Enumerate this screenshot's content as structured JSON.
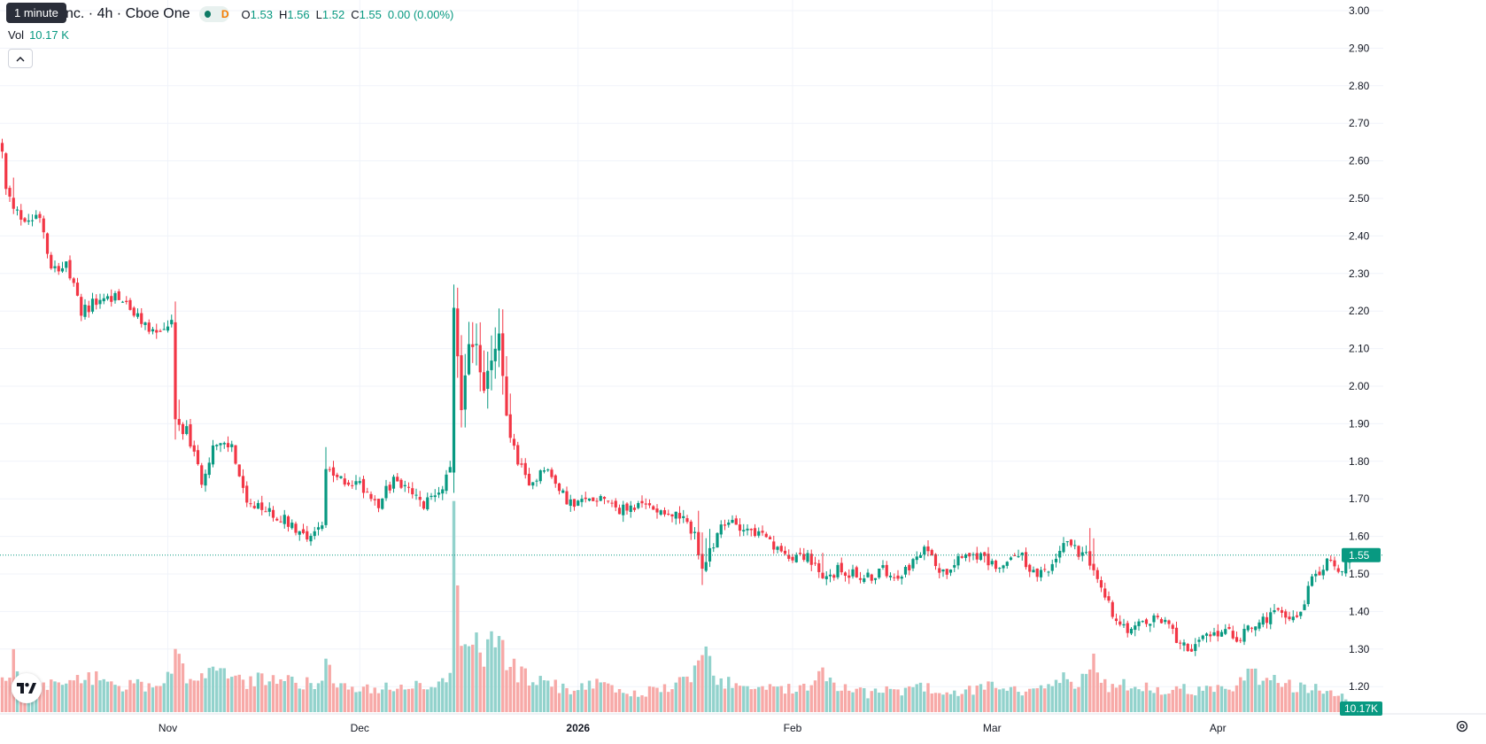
{
  "legend": {
    "title": "nc. · 4h · Cboe One",
    "interval_flag": "D",
    "tooltip": "1 minute",
    "open_label": "O",
    "open": "1.53",
    "high_label": "H",
    "high": "1.56",
    "low_label": "L",
    "low": "1.52",
    "close_label": "C",
    "close": "1.55",
    "change": "0.00 (0.00%)",
    "vol_label": "Vol",
    "vol_value": "10.17 K"
  },
  "colors": {
    "up": "#089981",
    "down": "#f23645",
    "up_vol": "#92d2cc",
    "down_vol": "#f7a9a7",
    "grid": "#f0f3fa",
    "last_price": "#089981"
  },
  "icons": {
    "collapse": "chevron-up-icon",
    "logo": "tradingview-logo-icon",
    "settings": "gear-icon"
  },
  "chart_data": {
    "type": "candlestick",
    "y_axis": {
      "ticks": [
        "3.00",
        "2.90",
        "2.80",
        "2.70",
        "2.60",
        "2.50",
        "2.40",
        "2.30",
        "2.20",
        "2.10",
        "2.00",
        "1.90",
        "1.80",
        "1.70",
        "1.60",
        "1.50",
        "1.40",
        "1.30",
        "1.20"
      ],
      "range": [
        1.165,
        3.015
      ]
    },
    "x_axis": {
      "ticks": [
        {
          "label": "Nov",
          "index": 44,
          "bold": false
        },
        {
          "label": "Dec",
          "index": 95,
          "bold": false
        },
        {
          "label": "2026",
          "index": 153,
          "bold": true
        },
        {
          "label": "Feb",
          "index": 210,
          "bold": false
        },
        {
          "label": "Mar",
          "index": 263,
          "bold": false
        },
        {
          "label": "Apr",
          "index": 323,
          "bold": false
        }
      ]
    },
    "last_price": {
      "value": 1.55,
      "label": "1.55"
    },
    "last_volume_label": "10.17K",
    "volume_max": 100,
    "anchors": [
      [
        0,
        2.62,
        18
      ],
      [
        1,
        2.52,
        16
      ],
      [
        3,
        2.47,
        30
      ],
      [
        6,
        2.44,
        14
      ],
      [
        10,
        2.46,
        18
      ],
      [
        13,
        2.32,
        16
      ],
      [
        17,
        2.32,
        15
      ],
      [
        21,
        2.2,
        18
      ],
      [
        26,
        2.23,
        22
      ],
      [
        31,
        2.24,
        14
      ],
      [
        36,
        2.18,
        16
      ],
      [
        41,
        2.14,
        14
      ],
      [
        45,
        2.17,
        20
      ],
      [
        46,
        1.9,
        34
      ],
      [
        49,
        1.88,
        20
      ],
      [
        53,
        1.75,
        22
      ],
      [
        56,
        1.84,
        24
      ],
      [
        61,
        1.84,
        18
      ],
      [
        65,
        1.68,
        16
      ],
      [
        70,
        1.67,
        20
      ],
      [
        76,
        1.64,
        18
      ],
      [
        81,
        1.6,
        16
      ],
      [
        85,
        1.63,
        18
      ],
      [
        86,
        1.77,
        26
      ],
      [
        90,
        1.75,
        14
      ],
      [
        95,
        1.74,
        12
      ],
      [
        100,
        1.69,
        14
      ],
      [
        104,
        1.75,
        14
      ],
      [
        108,
        1.72,
        16
      ],
      [
        112,
        1.68,
        14
      ],
      [
        117,
        1.74,
        16
      ],
      [
        119,
        1.77,
        18
      ],
      [
        120,
        2.22,
        100
      ],
      [
        122,
        1.93,
        34
      ],
      [
        124,
        2.1,
        30
      ],
      [
        126,
        2.1,
        40
      ],
      [
        128,
        2.0,
        30
      ],
      [
        130,
        2.08,
        40
      ],
      [
        132,
        2.13,
        36
      ],
      [
        134,
        1.91,
        30
      ],
      [
        137,
        1.8,
        22
      ],
      [
        140,
        1.73,
        20
      ],
      [
        144,
        1.79,
        18
      ],
      [
        148,
        1.72,
        14
      ],
      [
        152,
        1.68,
        12
      ],
      [
        156,
        1.7,
        18
      ],
      [
        160,
        1.71,
        14
      ],
      [
        164,
        1.67,
        12
      ],
      [
        168,
        1.68,
        10
      ],
      [
        172,
        1.68,
        12
      ],
      [
        176,
        1.67,
        14
      ],
      [
        180,
        1.65,
        16
      ],
      [
        184,
        1.61,
        22
      ],
      [
        186,
        1.5,
        34
      ],
      [
        190,
        1.61,
        18
      ],
      [
        194,
        1.64,
        16
      ],
      [
        198,
        1.62,
        14
      ],
      [
        202,
        1.6,
        14
      ],
      [
        206,
        1.56,
        12
      ],
      [
        210,
        1.55,
        14
      ],
      [
        214,
        1.55,
        14
      ],
      [
        218,
        1.48,
        26
      ],
      [
        222,
        1.51,
        12
      ],
      [
        226,
        1.5,
        14
      ],
      [
        230,
        1.49,
        10
      ],
      [
        234,
        1.51,
        12
      ],
      [
        238,
        1.5,
        12
      ],
      [
        242,
        1.53,
        14
      ],
      [
        246,
        1.57,
        14
      ],
      [
        250,
        1.5,
        12
      ],
      [
        254,
        1.55,
        12
      ],
      [
        258,
        1.56,
        12
      ],
      [
        262,
        1.53,
        14
      ],
      [
        266,
        1.52,
        14
      ],
      [
        270,
        1.56,
        12
      ],
      [
        274,
        1.5,
        12
      ],
      [
        278,
        1.5,
        14
      ],
      [
        282,
        1.59,
        18
      ],
      [
        284,
        1.58,
        14
      ],
      [
        286,
        1.56,
        16
      ],
      [
        288,
        1.57,
        22
      ],
      [
        290,
        1.5,
        30
      ],
      [
        292,
        1.46,
        16
      ],
      [
        296,
        1.38,
        14
      ],
      [
        300,
        1.35,
        16
      ],
      [
        304,
        1.37,
        14
      ],
      [
        308,
        1.38,
        12
      ],
      [
        312,
        1.33,
        14
      ],
      [
        316,
        1.3,
        12
      ],
      [
        320,
        1.33,
        14
      ],
      [
        324,
        1.35,
        12
      ],
      [
        328,
        1.33,
        14
      ],
      [
        332,
        1.36,
        22
      ],
      [
        336,
        1.38,
        18
      ],
      [
        340,
        1.4,
        16
      ],
      [
        344,
        1.38,
        14
      ],
      [
        348,
        1.48,
        14
      ],
      [
        352,
        1.54,
        12
      ],
      [
        354,
        1.51,
        10
      ],
      [
        356,
        1.52,
        10
      ],
      [
        358,
        1.55,
        6
      ]
    ]
  }
}
